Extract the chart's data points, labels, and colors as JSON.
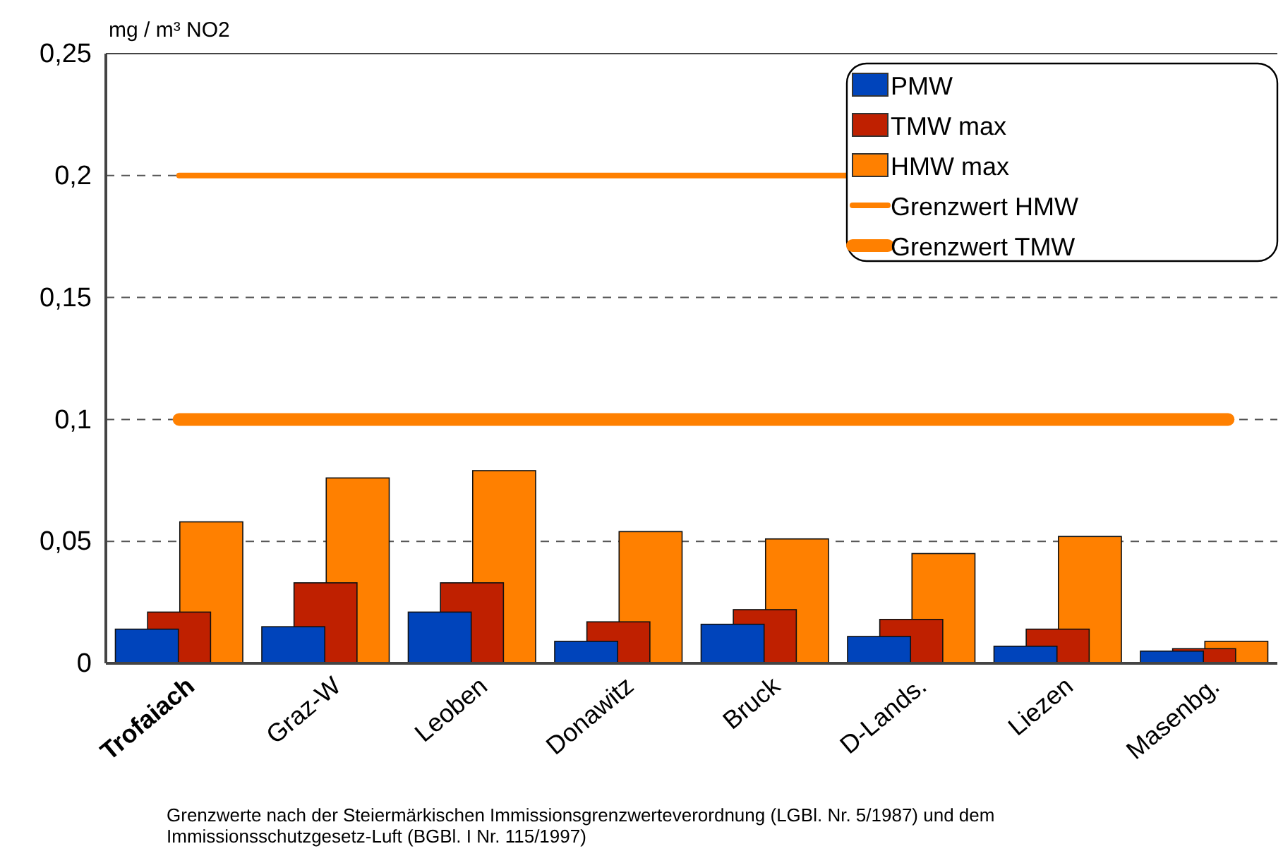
{
  "chart_data": {
    "type": "bar",
    "ylabel": "mg / m³ NO2",
    "categories": [
      "Trofaiach",
      "Graz-W",
      "Leoben",
      "Donawitz",
      "Bruck",
      "D-Lands.",
      "Liezen",
      "Masenbg."
    ],
    "series": [
      {
        "name": "PMW",
        "color": "#0044bb",
        "values": [
          0.014,
          0.015,
          0.021,
          0.009,
          0.016,
          0.011,
          0.007,
          0.005
        ]
      },
      {
        "name": "TMW max",
        "color": "#bf2000",
        "values": [
          0.021,
          0.033,
          0.033,
          0.017,
          0.022,
          0.018,
          0.014,
          0.006
        ]
      },
      {
        "name": "HMW max",
        "color": "#ff8000",
        "values": [
          0.058,
          0.076,
          0.079,
          0.054,
          0.051,
          0.045,
          0.052,
          0.009
        ]
      }
    ],
    "ref_lines": [
      {
        "axis": "y",
        "value": 0.2,
        "label": "Grenzwert HMW",
        "color": "#ff8000"
      },
      {
        "axis": "y",
        "value": 0.1,
        "label": "Grenzwert TMW",
        "color": "#ff8000"
      }
    ],
    "ylim": [
      0,
      0.25
    ],
    "yticks": [
      0,
      {
        "value": 0.05,
        "label": "0,05"
      },
      {
        "value": 0.1,
        "label": "0,1"
      },
      {
        "value": 0.15,
        "label": "0,15"
      },
      {
        "value": 0.2,
        "label": "0,2"
      },
      {
        "value": 0.25,
        "label": "0,25"
      }
    ],
    "grid": "y",
    "legend": "top right",
    "annotations": [
      "Grenzwerte nach der Steiermärkischen Immissionsgrenzwerteverordnung (LGBl. Nr. 5/1987) und dem Immissionsschutzgesetz-Luft (BGBl. I Nr. 115/1997)"
    ]
  }
}
